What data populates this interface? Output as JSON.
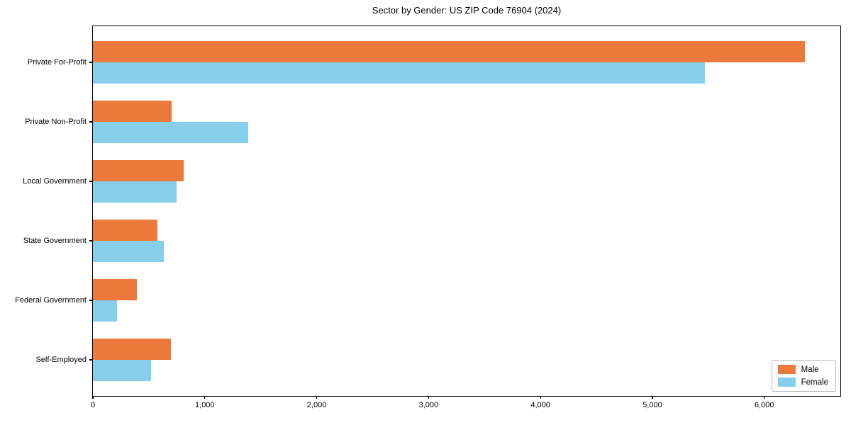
{
  "figure": {
    "title": "Sector by Gender: US ZIP Code 76904 (2024)"
  },
  "chart_data": {
    "type": "bar",
    "orientation": "horizontal",
    "title": "Sector by Gender: US ZIP Code 76904 (2024)",
    "categories": [
      "Private For-Profit",
      "Private Non-Profit",
      "Local Government",
      "State Government",
      "Federal Government",
      "Self-Employed"
    ],
    "series": [
      {
        "name": "Male",
        "color": "#eb7a3c",
        "values": [
          6360,
          705,
          810,
          575,
          390,
          700
        ]
      },
      {
        "name": "Female",
        "color": "#87ceea",
        "values": [
          5470,
          1390,
          745,
          635,
          215,
          520
        ]
      }
    ],
    "xlabel": "",
    "ylabel": "",
    "xlim": [
      0,
      6680
    ],
    "xticks": [
      0,
      1000,
      2000,
      3000,
      4000,
      5000,
      6000
    ],
    "xtick_labels": [
      "0",
      "1,000",
      "2,000",
      "3,000",
      "4,000",
      "5,000",
      "6,000"
    ],
    "grid": false,
    "legend": {
      "position": "lower-right"
    },
    "colors": {
      "spine": "#000000",
      "text": "#000000",
      "background": "#ffffff"
    }
  }
}
